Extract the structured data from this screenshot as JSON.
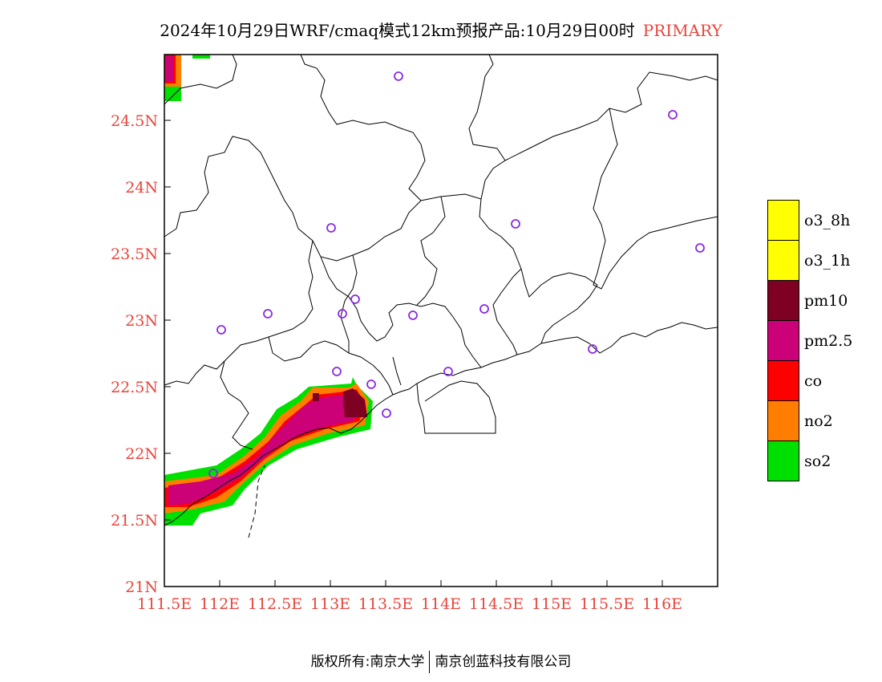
{
  "title": {
    "main": "2024年10月29日WRF/cmaq模式12km预报产品:10月29日00时",
    "tag": "PRIMARY"
  },
  "colors": {
    "axis_label": "#e8453c",
    "so2": "#00e000",
    "no2": "#ff7e00",
    "co": "#ff0000",
    "pm25": "#cc0077",
    "pm10": "#7e0023",
    "o3_1h": "#ffff00",
    "o3_8h": "#ffff00",
    "station": "#8a2be2"
  },
  "map": {
    "lon_ticks": [
      "111.5E",
      "112E",
      "112.5E",
      "113E",
      "113.5E",
      "114E",
      "114.5E",
      "115E",
      "115.5E",
      "116E"
    ],
    "lat_ticks": [
      "24.5N",
      "24N",
      "23.5N",
      "23N",
      "22.5N",
      "22N",
      "21.5N",
      "21N"
    ]
  },
  "legend": [
    {
      "label": "o3_8h",
      "color": "#ffff00"
    },
    {
      "label": "o3_1h",
      "color": "#ffff00"
    },
    {
      "label": "pm10",
      "color": "#7e0023"
    },
    {
      "label": "pm2.5",
      "color": "#cc0077"
    },
    {
      "label": "co",
      "color": "#ff0000"
    },
    {
      "label": "no2",
      "color": "#ff7e00"
    },
    {
      "label": "so2",
      "color": "#00e000"
    }
  ],
  "footer": {
    "left": "版权所有:南京大学",
    "right": "南京创蓝科技有限公司"
  }
}
